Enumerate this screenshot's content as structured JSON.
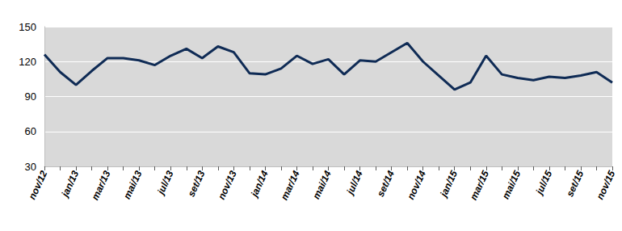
{
  "chart_data": {
    "type": "line",
    "categories": [
      "nov/12",
      null,
      "jan/13",
      null,
      "mar/13",
      null,
      "mai/13",
      null,
      "jul/13",
      null,
      "set/13",
      null,
      "nov/13",
      null,
      "jan/14",
      null,
      "mar/14",
      null,
      "mai/14",
      null,
      "jul/14",
      null,
      "set/14",
      null,
      "nov/14",
      null,
      "jan/15",
      null,
      "mar/15",
      null,
      "mai/15",
      null,
      "jul/15",
      null,
      "set/15",
      null,
      "nov/15"
    ],
    "values": [
      126,
      111,
      100,
      112,
      123,
      123,
      121,
      117,
      125,
      131,
      123,
      133,
      128,
      110,
      109,
      114,
      125,
      118,
      122,
      109,
      121,
      120,
      128,
      136,
      120,
      108,
      96,
      102,
      125,
      109,
      106,
      104,
      107,
      106,
      108,
      111,
      102
    ],
    "color": "#0f2b55",
    "ylim": [
      30,
      150
    ],
    "yticks": [
      30,
      60,
      90,
      120,
      150
    ],
    "grid": true
  }
}
